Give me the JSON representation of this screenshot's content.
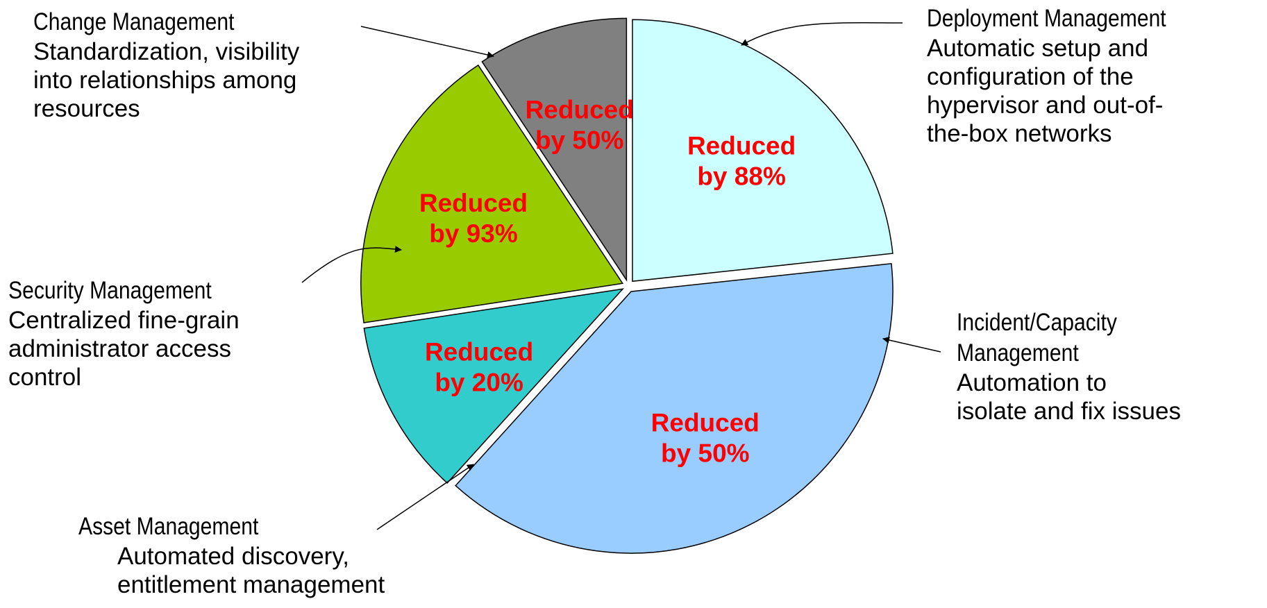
{
  "chart_data": {
    "type": "pie",
    "slices": [
      {
        "key": "deployment",
        "value": 23.3,
        "label_line1": "Reduced",
        "label_line2": "by 88%",
        "color": "#ccffff"
      },
      {
        "key": "incident",
        "value": 38.4,
        "label_line1": "Reduced",
        "label_line2": "by 50%",
        "color": "#99ccff"
      },
      {
        "key": "asset",
        "value": 10.9,
        "label_line1": "Reduced",
        "label_line2": "by 20%",
        "color": "#33cccc"
      },
      {
        "key": "security",
        "value": 18.1,
        "label_line1": "Reduced",
        "label_line2": "by 93%",
        "color": "#99cc00"
      },
      {
        "key": "change",
        "value": 9.3,
        "label_line1": "Reduced",
        "label_line2": "by 50%",
        "color": "#808080"
      }
    ]
  },
  "annotations": {
    "change": {
      "title": "Change Management",
      "desc": "Standardization, visibility\ninto relationships among\nresources"
    },
    "deployment": {
      "title": "Deployment Management",
      "desc": "Automatic setup and\nconfiguration of the\nhypervisor and out-of-\nthe-box networks"
    },
    "security": {
      "title": "Security Management",
      "desc": "Centralized fine-grain\nadministrator access\ncontrol"
    },
    "incident": {
      "title": "Incident/Capacity\nManagement",
      "desc": "Automation to\nisolate and fix issues"
    },
    "asset": {
      "title": "Asset Management",
      "desc": "Automated discovery,\nentitlement management"
    }
  }
}
